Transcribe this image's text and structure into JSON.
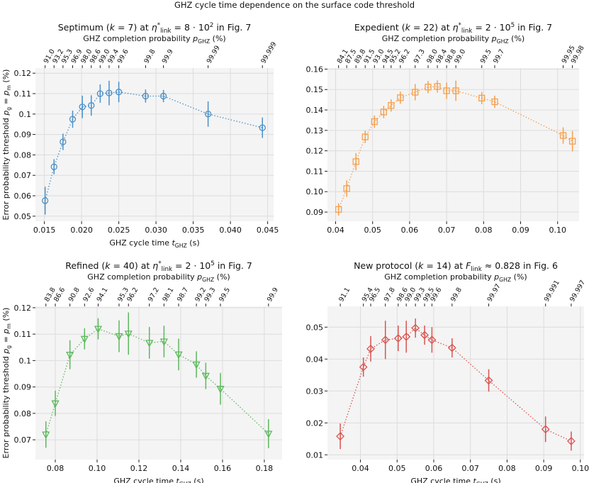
{
  "figure": {
    "suptitle": "GHZ cycle time dependence on the surface code threshold",
    "ylabel": "Error probability threshold p_g = p_m (%)"
  },
  "chart_data": [
    {
      "type": "scatter",
      "title": "Septimum (k = 7) at η*link = 8 · 10² in Fig. 7",
      "title_parts": [
        "Septimum (",
        "k",
        " = 7) at ",
        "η",
        "*",
        "link",
        " = 8 · 10",
        "2",
        " in Fig. 7"
      ],
      "xlabel": "GHZ cycle time t_GHZ (s)",
      "xlabel_parts": [
        "GHZ cycle time ",
        "t",
        "GHZ",
        " (s)"
      ],
      "toplabel": "GHZ completion probability p_GHZ (%)",
      "toplabel_parts": [
        "GHZ completion probability ",
        "p",
        "GHZ",
        " (%)"
      ],
      "color": "#4a90c8",
      "marker": "circle",
      "xlim": [
        0.0138,
        0.0458
      ],
      "ylim": [
        0.0475,
        0.1225
      ],
      "xticks": [
        0.015,
        0.02,
        0.025,
        0.03,
        0.035,
        0.04,
        0.045
      ],
      "xtick_labels": [
        "0.015",
        "0.020",
        "0.025",
        "0.030",
        "0.035",
        "0.040",
        "0.045"
      ],
      "yticks": [
        0.05,
        0.06,
        0.07,
        0.08,
        0.09,
        0.1,
        0.11,
        0.12
      ],
      "ytick_labels": [
        "0.05",
        "0.06",
        "0.07",
        "0.08",
        "0.09",
        "0.1",
        "0.11",
        "0.12"
      ],
      "x": [
        0.0151,
        0.0163,
        0.0175,
        0.0188,
        0.0201,
        0.0213,
        0.0225,
        0.0237,
        0.025,
        0.0286,
        0.031,
        0.037,
        0.0443
      ],
      "y": [
        0.0576,
        0.0742,
        0.0864,
        0.0975,
        0.1035,
        0.1042,
        0.11,
        0.1103,
        0.1108,
        0.1088,
        0.1088,
        0.1,
        0.0933
      ],
      "yerr": [
        0.0068,
        0.0037,
        0.004,
        0.0042,
        0.0055,
        0.005,
        0.0045,
        0.006,
        0.005,
        0.0032,
        0.003,
        0.0062,
        0.005
      ],
      "top_ticks": [
        0.0151,
        0.0163,
        0.0175,
        0.0188,
        0.0201,
        0.0213,
        0.0225,
        0.0237,
        0.025,
        0.0286,
        0.031,
        0.037,
        0.0443
      ],
      "top_labels": [
        "91.0",
        "93.2",
        "95.3",
        "96.9",
        "98.0",
        "98.6",
        "99.0",
        "99.4",
        "99.6",
        "99.8",
        "99.9",
        "99.99",
        "99.999"
      ]
    },
    {
      "type": "scatter",
      "title": "Expedient (k = 22) at η*link = 2 · 10⁵ in Fig. 7",
      "title_parts": [
        "Expedient (",
        "k",
        " = 22) at ",
        "η",
        "*",
        "link",
        " = 2 · 10",
        "5",
        " in Fig. 7"
      ],
      "xlabel": "",
      "xlabel_parts": [],
      "toplabel": "GHZ completion probability p_GHZ (%)",
      "toplabel_parts": [
        "GHZ completion probability ",
        "p",
        "GHZ",
        " (%)"
      ],
      "color": "#f5a04e",
      "marker": "square",
      "xlim": [
        0.0378,
        0.1058
      ],
      "ylim": [
        0.0855,
        0.1605
      ],
      "xticks": [
        0.04,
        0.05,
        0.06,
        0.07,
        0.08,
        0.09,
        0.1
      ],
      "xtick_labels": [
        "0.04",
        "0.05",
        "0.06",
        "0.07",
        "0.08",
        "0.09",
        "0.10"
      ],
      "yticks": [
        0.09,
        0.1,
        0.11,
        0.12,
        0.13,
        0.14,
        0.15,
        0.16
      ],
      "ytick_labels": [
        "0.09",
        "0.10",
        "0.11",
        "0.12",
        "0.13",
        "0.14",
        "0.15",
        "0.16"
      ],
      "x": [
        0.0408,
        0.043,
        0.0455,
        0.048,
        0.0505,
        0.053,
        0.055,
        0.0575,
        0.0615,
        0.065,
        0.0675,
        0.07,
        0.0725,
        0.0795,
        0.083,
        0.1015,
        0.104
      ],
      "y": [
        0.0913,
        0.1015,
        0.1147,
        0.1268,
        0.1343,
        0.139,
        0.1422,
        0.146,
        0.1487,
        0.1512,
        0.1515,
        0.1494,
        0.1494,
        0.1458,
        0.144,
        0.1275,
        0.1247
      ],
      "yerr": [
        0.003,
        0.004,
        0.0042,
        0.003,
        0.003,
        0.003,
        0.003,
        0.003,
        0.004,
        0.003,
        0.003,
        0.004,
        0.005,
        0.003,
        0.003,
        0.004,
        0.005
      ],
      "top_ticks": [
        0.0408,
        0.043,
        0.0455,
        0.048,
        0.0505,
        0.053,
        0.055,
        0.0575,
        0.0615,
        0.065,
        0.0675,
        0.07,
        0.0725,
        0.0795,
        0.083,
        0.1015,
        0.104
      ],
      "top_labels": [
        "84.1",
        "87.5",
        "89.8",
        "91.5",
        "93.0",
        "94.5",
        "95.2",
        "96.2",
        "97.3",
        "98.0",
        "98.4",
        "98.8",
        "99.0",
        "99.5",
        "99.7",
        "99.95",
        "99.98"
      ]
    },
    {
      "type": "scatter",
      "title": "Refined (k = 40) at η*link = 2 · 10⁵ in Fig. 7",
      "title_parts": [
        "Refined (",
        "k",
        " = 40) at ",
        "η",
        "*",
        "link",
        " = 2 · 10",
        "5",
        " in Fig. 7"
      ],
      "xlabel": "GHZ cycle time t_GHZ (s)",
      "xlabel_parts": [
        "GHZ cycle time ",
        "t",
        "GHZ",
        " (s)"
      ],
      "toplabel": "GHZ completion probability p_GHZ (%)",
      "toplabel_parts": [
        "GHZ completion probability ",
        "p",
        "GHZ",
        " (%)"
      ],
      "color": "#5cb85c",
      "marker": "triangle",
      "xlim": [
        0.0705,
        0.1885
      ],
      "ylim": [
        0.0625,
        0.1205
      ],
      "xticks": [
        0.08,
        0.1,
        0.12,
        0.14,
        0.16,
        0.18
      ],
      "xtick_labels": [
        "0.08",
        "0.10",
        "0.12",
        "0.14",
        "0.16",
        "0.18"
      ],
      "yticks": [
        0.07,
        0.08,
        0.09,
        0.1,
        0.11,
        0.12
      ],
      "ytick_labels": [
        "0.07",
        "0.08",
        "0.09",
        "0.1",
        "0.11",
        "0.12"
      ],
      "x": [
        0.0755,
        0.08,
        0.087,
        0.094,
        0.1005,
        0.1105,
        0.115,
        0.125,
        0.132,
        0.139,
        0.1475,
        0.152,
        0.159,
        0.182
      ],
      "y": [
        0.072,
        0.0838,
        0.1022,
        0.1082,
        0.112,
        0.1092,
        0.1102,
        0.1067,
        0.1072,
        0.1023,
        0.0985,
        0.0942,
        0.0893,
        0.0723
      ],
      "yerr": [
        0.005,
        0.0048,
        0.0055,
        0.004,
        0.004,
        0.006,
        0.008,
        0.006,
        0.006,
        0.006,
        0.005,
        0.005,
        0.006,
        0.0055
      ],
      "top_ticks": [
        0.0755,
        0.08,
        0.087,
        0.094,
        0.1005,
        0.1105,
        0.115,
        0.125,
        0.132,
        0.139,
        0.1475,
        0.152,
        0.159,
        0.182
      ],
      "top_labels": [
        "83.8",
        "86.6",
        "90.8",
        "92.6",
        "94.1",
        "95.3",
        "96.2",
        "97.2",
        "98.1",
        "98.7",
        "99.2",
        "99.3",
        "99.5",
        "99.9"
      ]
    },
    {
      "type": "scatter",
      "title": "New protocol (k = 14) at F_link ≈ 0.828 in Fig. 6",
      "title_parts": [
        "New protocol (",
        "k",
        " = 14) at ",
        "F",
        "link",
        " ≈ 0.828 in Fig. 6"
      ],
      "xlabel": "GHZ cycle time t_GHZ (s)",
      "xlabel_parts": [
        "GHZ cycle time ",
        "t",
        "GHZ",
        " (s)"
      ],
      "toplabel": "GHZ completion probability p_GHZ (%)",
      "toplabel_parts": [
        "GHZ completion probability ",
        "p",
        "GHZ",
        " (%)"
      ],
      "color": "#d9534f",
      "marker": "diamond",
      "xlim": [
        0.031,
        0.101
      ],
      "ylim": [
        0.0085,
        0.0565
      ],
      "xticks": [
        0.04,
        0.05,
        0.06,
        0.07,
        0.08,
        0.09,
        0.1
      ],
      "xtick_labels": [
        "0.04",
        "0.05",
        "0.06",
        "0.07",
        "0.08",
        "0.09",
        "0.10"
      ],
      "yticks": [
        0.01,
        0.02,
        0.03,
        0.04,
        0.05
      ],
      "ytick_labels": [
        "0.01",
        "0.02",
        "0.03",
        "0.04",
        "0.05"
      ],
      "x": [
        0.0345,
        0.0408,
        0.0428,
        0.0468,
        0.0503,
        0.0525,
        0.055,
        0.0575,
        0.0595,
        0.065,
        0.075,
        0.0905,
        0.0975
      ],
      "y": [
        0.0158,
        0.0375,
        0.0432,
        0.046,
        0.0465,
        0.047,
        0.0497,
        0.0475,
        0.046,
        0.0435,
        0.0333,
        0.018,
        0.0143
      ],
      "yerr": [
        0.004,
        0.003,
        0.004,
        0.006,
        0.004,
        0.005,
        0.003,
        0.003,
        0.004,
        0.003,
        0.0035,
        0.004,
        0.003
      ],
      "top_ticks": [
        0.0345,
        0.0408,
        0.0428,
        0.0468,
        0.0503,
        0.0525,
        0.055,
        0.0575,
        0.0595,
        0.065,
        0.075,
        0.0905,
        0.0975
      ],
      "top_labels": [
        "91.1",
        "95.4",
        "96.5",
        "97.8",
        "98.6",
        "99.0",
        "99.3",
        "99.5",
        "99.6",
        "99.8",
        "99.97",
        "99.991",
        "99.997"
      ]
    }
  ]
}
